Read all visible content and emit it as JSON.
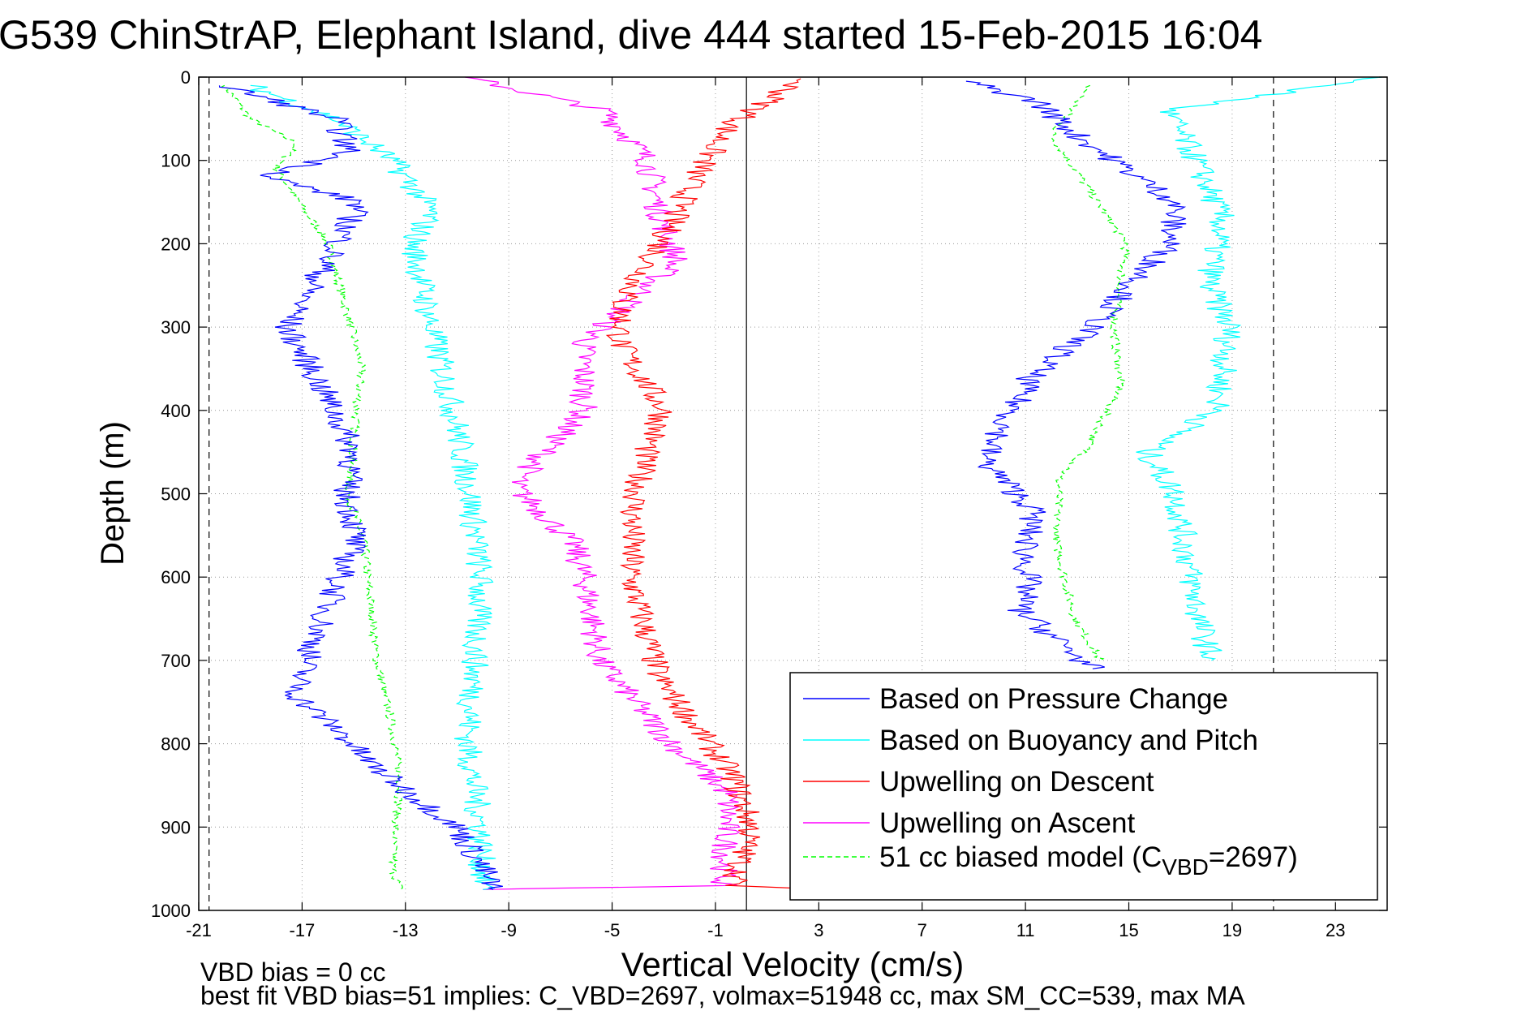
{
  "chart_data": {
    "type": "line",
    "title": "G539 ChinStrAP, Elephant Island, dive 444 started 15-Feb-2015 16:04",
    "xlabel": "Vertical Velocity (cm/s)",
    "ylabel": "Depth (m)",
    "xlim": [
      -21,
      25
    ],
    "ylim": [
      0,
      1000
    ],
    "y_reversed": true,
    "x_ticks": [
      "-21",
      "-17",
      "-13",
      "-9",
      "-5",
      "-1",
      "3",
      "7",
      "11",
      "15",
      "19",
      "23"
    ],
    "y_ticks": [
      "0",
      "100",
      "200",
      "300",
      "400",
      "500",
      "600",
      "700",
      "800",
      "900",
      "1000"
    ],
    "grid": true,
    "legend_position": "bottom-right",
    "reference_lines": {
      "solid_x": 0.2,
      "dashed_x": [
        -20.6,
        20.6
      ]
    },
    "series": [
      {
        "name": "Based on Pressure Change",
        "color": "#0000ff",
        "dash": false,
        "profiles": [
          {
            "x": [
              -20.2,
              -19.0,
              -15.7,
              -15.2,
              -18.3,
              -14.8,
              -15.6,
              -17.6,
              -16.1,
              -15.0,
              -15.3,
              -14.9,
              -15.8,
              -17.3,
              -15.4,
              -14.5,
              -12.8,
              -11.0,
              -10.0,
              -9.6
            ],
            "y": [
              10,
              20,
              50,
              90,
              120,
              150,
              200,
              300,
              380,
              450,
              500,
              550,
              620,
              740,
              790,
              820,
              860,
              900,
              950,
              975
            ]
          },
          {
            "x": [
              8.7,
              11.5,
              13.0,
              16.8,
              16.6,
              13.6,
              11.2,
              9.4,
              11.3,
              11.0,
              11.1,
              10.8,
              12.8,
              13.6
            ],
            "y": [
              5,
              30,
              70,
              150,
              200,
              300,
              360,
              460,
              520,
              570,
              610,
              640,
              690,
              710
            ]
          }
        ]
      },
      {
        "name": "Based on Buoyancy and Pitch",
        "color": "#00ffff",
        "dash": false,
        "profiles": [
          {
            "x": [
              -19.0,
              -15.7,
              -13.5,
              -12.0,
              -12.7,
              -12.0,
              -11.0,
              -10.5,
              -10.1,
              -10.3,
              -10.6,
              -10.1,
              -10.0
            ],
            "y": [
              10,
              50,
              100,
              160,
              200,
              300,
              420,
              500,
              600,
              700,
              800,
              900,
              975
            ]
          },
          {
            "x": [
              24.8,
              16.5,
              17.6,
              18.6,
              18.1,
              18.9,
              18.4,
              15.7,
              16.8,
              17.4,
              17.7,
              18.2
            ],
            "y": [
              0,
              40,
              100,
              170,
              250,
              300,
              400,
              450,
              500,
              600,
              650,
              700
            ]
          }
        ]
      },
      {
        "name": "Upwelling on Descent",
        "color": "#ff0000",
        "dash": false,
        "profiles": [
          {
            "x": [
              2.3,
              1.0,
              -0.5,
              -1.8,
              -3.1,
              -4.6,
              -4.7,
              -3.0,
              -3.7,
              -4.2,
              -4.3,
              -3.2,
              -0.3,
              0.4,
              -0.3,
              2.7
            ],
            "y": [
              2,
              30,
              60,
              120,
              200,
              270,
              320,
              400,
              450,
              520,
              600,
              720,
              840,
              900,
              970,
              975
            ]
          }
        ]
      },
      {
        "name": "Upwelling on Ascent",
        "color": "#ff00ff",
        "dash": false,
        "profiles": [
          {
            "x": [
              -10.7,
              -5.3,
              -3.6,
              -3.2,
              -2.5,
              -6.1,
              -6.1,
              -8.8,
              -6.5,
              -6.0,
              -5.5,
              -2.7,
              -0.5,
              -0.7,
              -10.0
            ],
            "y": [
              0,
              40,
              100,
              160,
              220,
              320,
              400,
              490,
              560,
              610,
              700,
              800,
              860,
              970,
              975
            ]
          }
        ]
      },
      {
        "name": "51 cc biased model (C",
        "name_subscript": "VBD",
        "name_suffix": "=2697)",
        "color": "#00ff00",
        "dash": true,
        "profiles": [
          {
            "x": [
              -20.0,
              -19.0,
              -17.2,
              -18.0,
              -16.0,
              -15.1,
              -14.7,
              -14.9,
              -15.2,
              -14.6,
              -14.1,
              -13.5,
              -13.2,
              -13.4,
              -13.5,
              -13.2
            ],
            "y": [
              10,
              50,
              80,
              110,
              200,
              300,
              350,
              400,
              500,
              560,
              700,
              780,
              850,
              900,
              950,
              975
            ]
          },
          {
            "x": [
              13.5,
              12.0,
              14.9,
              14.4,
              14.7,
              13.3,
              12.3,
              12.2,
              12.9,
              13.9
            ],
            "y": [
              10,
              70,
              200,
              300,
              370,
              450,
              480,
              560,
              650,
              700
            ]
          }
        ]
      }
    ],
    "annotations": [
      "VBD bias = 0 cc",
      "best fit VBD bias=51 implies: C_VBD=2697, volmax=51948 cc, max SM_CC=539, max MA"
    ]
  }
}
